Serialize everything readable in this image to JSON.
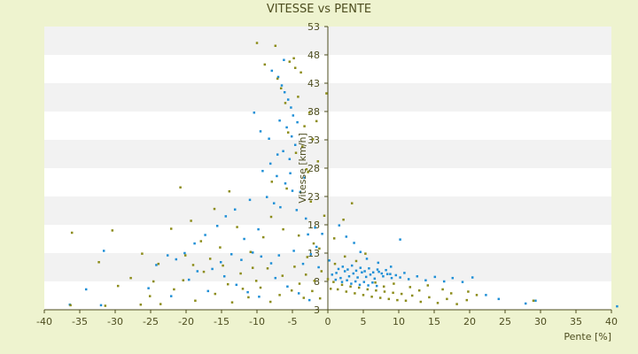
{
  "chart_data": {
    "type": "scatter",
    "title": "VITESSE vs PENTE",
    "xlabel": "Pente [%]",
    "ylabel": "Vitesse [km/h]",
    "xlim": [
      -40,
      40
    ],
    "ylim": [
      3,
      53
    ],
    "xticks": [
      -40,
      -35,
      -30,
      -25,
      -20,
      -15,
      -10,
      -5,
      0,
      5,
      10,
      15,
      20,
      25,
      30,
      35,
      40
    ],
    "yticks": [
      3,
      8,
      13,
      18,
      23,
      28,
      33,
      38,
      43,
      48,
      53
    ],
    "grid": "horizontal bands",
    "legend": "none",
    "colors": {
      "background": "#eef3cf",
      "plot_band_light": "#ffffff",
      "plot_band_dark": "#f2f2f2",
      "axis": "#4d4d1f",
      "series_a": "#1f8fd6",
      "series_b": "#8c8c1a"
    },
    "series": [
      {
        "color": "#1f8fd6",
        "points": [
          [
            -7.9,
            45.2
          ],
          [
            -7.0,
            44.1
          ],
          [
            -6.5,
            42.6
          ],
          [
            -6.1,
            41.4
          ],
          [
            -5.6,
            40.1
          ],
          [
            -5.2,
            38.7
          ],
          [
            -4.9,
            37.3
          ],
          [
            -6.8,
            36.4
          ],
          [
            -5.8,
            35.2
          ],
          [
            -5.1,
            33.6
          ],
          [
            -4.6,
            32.1
          ],
          [
            -6.3,
            31.0
          ],
          [
            -5.4,
            29.6
          ],
          [
            -8.1,
            28.8
          ],
          [
            -9.2,
            27.5
          ],
          [
            -7.2,
            26.6
          ],
          [
            -6.0,
            25.3
          ],
          [
            -5.0,
            24.0
          ],
          [
            -8.6,
            22.9
          ],
          [
            -7.6,
            21.8
          ],
          [
            -10.4,
            37.8
          ],
          [
            -9.5,
            34.5
          ],
          [
            -8.3,
            33.2
          ],
          [
            -7.1,
            30.4
          ],
          [
            -3.9,
            23.8
          ],
          [
            -4.4,
            20.6
          ],
          [
            -3.1,
            19.1
          ],
          [
            -1.8,
            17.5
          ],
          [
            -0.8,
            16.4
          ],
          [
            1.6,
            17.9
          ],
          [
            2.6,
            15.9
          ],
          [
            3.7,
            14.8
          ],
          [
            4.6,
            13.2
          ],
          [
            5.5,
            12.0
          ],
          [
            7.1,
            11.3
          ],
          [
            8.9,
            10.6
          ],
          [
            10.2,
            15.4
          ],
          [
            -13.1,
            20.7
          ],
          [
            -14.4,
            19.5
          ],
          [
            -15.6,
            17.8
          ],
          [
            -17.3,
            16.2
          ],
          [
            -18.8,
            14.7
          ],
          [
            -20.2,
            13.0
          ],
          [
            -21.4,
            11.9
          ],
          [
            -22.6,
            12.6
          ],
          [
            -24.2,
            10.9
          ],
          [
            -31.6,
            13.4
          ],
          [
            -34.1,
            6.6
          ],
          [
            -36.4,
            3.9
          ],
          [
            -32.0,
            3.8
          ],
          [
            -11.8,
            15.5
          ],
          [
            -10.6,
            13.1
          ],
          [
            -12.2,
            11.8
          ],
          [
            -13.6,
            12.8
          ],
          [
            -15.1,
            11.4
          ],
          [
            -16.3,
            10.2
          ],
          [
            -9.4,
            12.4
          ],
          [
            -8.0,
            11.2
          ],
          [
            -6.9,
            12.6
          ],
          [
            -4.8,
            13.4
          ],
          [
            -3.5,
            11.1
          ],
          [
            -2.4,
            12.8
          ],
          [
            -1.3,
            10.5
          ],
          [
            0.2,
            11.7
          ],
          [
            0.6,
            9.2
          ],
          [
            1.2,
            9.5
          ],
          [
            1.8,
            8.6
          ],
          [
            2.4,
            9.8
          ],
          [
            3.0,
            8.9
          ],
          [
            3.6,
            9.4
          ],
          [
            4.2,
            8.7
          ],
          [
            4.8,
            9.6
          ],
          [
            5.4,
            8.8
          ],
          [
            6.0,
            9.2
          ],
          [
            6.6,
            8.5
          ],
          [
            7.2,
            9.7
          ],
          [
            7.8,
            8.9
          ],
          [
            8.4,
            9.3
          ],
          [
            9.0,
            8.6
          ],
          [
            9.6,
            9.1
          ],
          [
            10.2,
            8.7
          ],
          [
            10.8,
            9.5
          ],
          [
            11.4,
            8.4
          ],
          [
            12.6,
            8.9
          ],
          [
            13.8,
            8.2
          ],
          [
            15.1,
            8.8
          ],
          [
            16.4,
            8.0
          ],
          [
            17.6,
            8.6
          ],
          [
            19.0,
            7.9
          ],
          [
            20.4,
            8.7
          ],
          [
            22.3,
            5.6
          ],
          [
            24.1,
            4.9
          ],
          [
            27.9,
            4.1
          ],
          [
            29.3,
            4.6
          ],
          [
            40.8,
            3.6
          ],
          [
            1.5,
            10.2
          ],
          [
            2.1,
            10.6
          ],
          [
            2.8,
            10.1
          ],
          [
            3.4,
            10.8
          ],
          [
            4.0,
            9.9
          ],
          [
            4.6,
            10.4
          ],
          [
            5.2,
            9.8
          ],
          [
            5.8,
            10.3
          ],
          [
            6.4,
            9.6
          ],
          [
            7.0,
            10.1
          ],
          [
            7.6,
            9.4
          ],
          [
            8.2,
            10.0
          ],
          [
            8.8,
            9.3
          ],
          [
            1.1,
            8.3
          ],
          [
            2.0,
            7.9
          ],
          [
            2.7,
            8.2
          ],
          [
            3.3,
            7.6
          ],
          [
            3.9,
            8.0
          ],
          [
            4.5,
            7.4
          ],
          [
            5.1,
            7.9
          ],
          [
            5.7,
            7.3
          ],
          [
            6.3,
            7.8
          ],
          [
            6.9,
            7.2
          ],
          [
            -2.8,
            16.3
          ],
          [
            -1.6,
            14.1
          ],
          [
            -18.4,
            9.8
          ],
          [
            -19.6,
            8.3
          ],
          [
            -14.6,
            8.9
          ],
          [
            -12.9,
            7.4
          ],
          [
            -11.3,
            6.1
          ],
          [
            -9.7,
            5.3
          ],
          [
            -7.4,
            8.6
          ],
          [
            -5.7,
            7.1
          ],
          [
            -4.1,
            5.9
          ],
          [
            -2.6,
            4.7
          ],
          [
            -6.2,
            47.1
          ],
          [
            -4.3,
            36.1
          ],
          [
            -5.3,
            27.1
          ],
          [
            -3.3,
            26.3
          ],
          [
            -6.7,
            21.1
          ],
          [
            -9.8,
            17.2
          ],
          [
            -11.0,
            22.4
          ],
          [
            -16.9,
            6.3
          ],
          [
            -22.1,
            5.4
          ],
          [
            -25.3,
            6.8
          ]
        ]
      },
      {
        "color": "#8c8c1a",
        "points": [
          [
            -10.0,
            50.1
          ],
          [
            -7.4,
            49.6
          ],
          [
            -4.8,
            47.4
          ],
          [
            -8.9,
            46.3
          ],
          [
            -5.4,
            46.8
          ],
          [
            -4.6,
            45.7
          ],
          [
            -3.8,
            44.9
          ],
          [
            -6.6,
            42.1
          ],
          [
            -4.2,
            40.6
          ],
          [
            -2.6,
            37.8
          ],
          [
            -3.3,
            35.4
          ],
          [
            -5.6,
            34.3
          ],
          [
            -2.1,
            33.1
          ],
          [
            -4.5,
            30.7
          ],
          [
            -1.4,
            29.2
          ],
          [
            -3.0,
            27.8
          ],
          [
            -7.9,
            25.6
          ],
          [
            -5.8,
            24.4
          ],
          [
            -2.4,
            22.1
          ],
          [
            -0.5,
            19.6
          ],
          [
            -13.9,
            23.9
          ],
          [
            -20.8,
            24.6
          ],
          [
            -16.0,
            20.8
          ],
          [
            -19.3,
            18.7
          ],
          [
            -22.1,
            17.3
          ],
          [
            -30.4,
            17.0
          ],
          [
            -36.1,
            16.6
          ],
          [
            -32.3,
            11.4
          ],
          [
            -26.2,
            12.9
          ],
          [
            -23.9,
            11.1
          ],
          [
            -27.8,
            8.6
          ],
          [
            -29.6,
            7.2
          ],
          [
            -25.1,
            5.4
          ],
          [
            -20.4,
            8.2
          ],
          [
            -17.5,
            9.7
          ],
          [
            -14.8,
            10.8
          ],
          [
            -12.3,
            9.4
          ],
          [
            -10.1,
            8.1
          ],
          [
            -8.5,
            10.3
          ],
          [
            -6.4,
            9.0
          ],
          [
            -4.7,
            10.6
          ],
          [
            -3.1,
            9.2
          ],
          [
            -1.9,
            8.1
          ],
          [
            -0.9,
            9.8
          ],
          [
            0.0,
            8.4
          ],
          [
            0.4,
            6.7
          ],
          [
            0.8,
            7.9
          ],
          [
            1.4,
            6.6
          ],
          [
            2.0,
            7.4
          ],
          [
            2.6,
            6.2
          ],
          [
            3.2,
            7.1
          ],
          [
            3.8,
            5.9
          ],
          [
            4.4,
            6.9
          ],
          [
            5.0,
            5.6
          ],
          [
            5.6,
            6.6
          ],
          [
            6.2,
            5.3
          ],
          [
            6.8,
            6.4
          ],
          [
            7.4,
            5.1
          ],
          [
            8.0,
            6.2
          ],
          [
            8.6,
            4.9
          ],
          [
            9.2,
            6.0
          ],
          [
            9.8,
            4.7
          ],
          [
            10.4,
            5.8
          ],
          [
            11.0,
            4.6
          ],
          [
            11.9,
            5.5
          ],
          [
            13.1,
            4.4
          ],
          [
            14.3,
            5.2
          ],
          [
            15.5,
            4.2
          ],
          [
            16.8,
            4.9
          ],
          [
            18.2,
            4.0
          ],
          [
            19.6,
            4.7
          ],
          [
            21.0,
            5.6
          ],
          [
            29.0,
            4.6
          ],
          [
            -5.1,
            6.4
          ],
          [
            -4.0,
            7.6
          ],
          [
            -3.4,
            5.1
          ],
          [
            -2.2,
            6.3
          ],
          [
            -1.1,
            5.0
          ],
          [
            -6.8,
            5.6
          ],
          [
            -8.1,
            4.4
          ],
          [
            -9.5,
            6.9
          ],
          [
            -11.2,
            5.2
          ],
          [
            -13.5,
            4.3
          ],
          [
            -15.9,
            5.8
          ],
          [
            -18.7,
            4.6
          ],
          [
            -23.6,
            4.0
          ],
          [
            -26.4,
            3.9
          ],
          [
            -31.4,
            3.7
          ],
          [
            -36.3,
            3.8
          ],
          [
            -2.9,
            12.3
          ],
          [
            -1.2,
            13.8
          ],
          [
            0.9,
            15.6
          ],
          [
            3.4,
            21.8
          ],
          [
            2.2,
            18.9
          ],
          [
            -0.2,
            41.2
          ],
          [
            -1.6,
            36.3
          ],
          [
            -3.6,
            31.8
          ],
          [
            -6.0,
            39.5
          ],
          [
            -7.1,
            43.8
          ],
          [
            -2.8,
            27.3
          ],
          [
            -20.1,
            12.6
          ],
          [
            -17.9,
            15.1
          ],
          [
            -15.2,
            14.0
          ],
          [
            -12.8,
            17.6
          ],
          [
            -10.9,
            13.2
          ],
          [
            -9.1,
            15.8
          ],
          [
            -8.0,
            19.4
          ],
          [
            -6.3,
            17.2
          ],
          [
            -4.1,
            16.1
          ],
          [
            -2.0,
            14.7
          ],
          [
            1.0,
            11.1
          ],
          [
            2.4,
            12.4
          ],
          [
            4.0,
            11.6
          ],
          [
            5.3,
            12.9
          ],
          [
            6.7,
            7.8
          ],
          [
            7.9,
            7.1
          ],
          [
            9.3,
            7.6
          ],
          [
            11.6,
            7.0
          ],
          [
            12.9,
            6.4
          ],
          [
            14.1,
            7.3
          ],
          [
            16.2,
            6.6
          ],
          [
            17.4,
            5.9
          ],
          [
            19.8,
            6.2
          ],
          [
            -24.6,
            8.0
          ],
          [
            -21.7,
            6.6
          ],
          [
            -19.0,
            10.9
          ],
          [
            -16.6,
            12.0
          ],
          [
            -14.1,
            7.5
          ],
          [
            -12.0,
            6.7
          ],
          [
            -10.6,
            10.4
          ]
        ]
      }
    ]
  }
}
